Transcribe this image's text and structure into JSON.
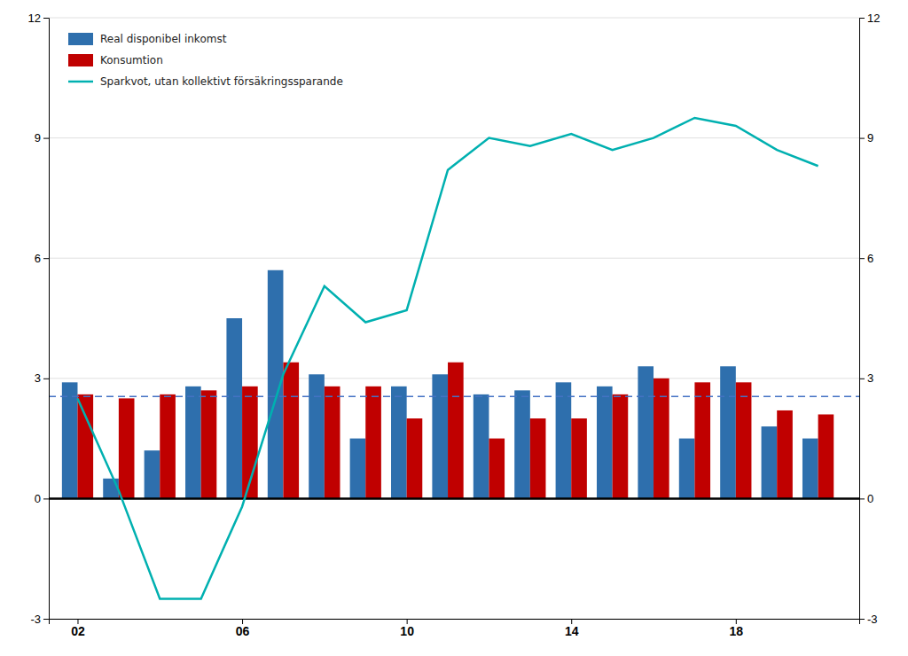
{
  "chart_data": {
    "type": "bar",
    "x": [
      2002,
      2003,
      2004,
      2005,
      2006,
      2007,
      2008,
      2009,
      2010,
      2011,
      2012,
      2013,
      2014,
      2015,
      2016,
      2017,
      2018,
      2019,
      2020
    ],
    "series": [
      {
        "name": "Real disponibel inkomst",
        "color": "#2E6FAD",
        "type": "bar",
        "values": [
          2.9,
          0.5,
          1.2,
          2.8,
          4.5,
          5.7,
          3.1,
          1.5,
          2.8,
          3.1,
          2.6,
          2.7,
          2.9,
          2.8,
          3.3,
          1.5,
          3.3,
          1.8,
          1.5
        ]
      },
      {
        "name": "Konsumtion",
        "color": "#C00000",
        "type": "bar",
        "values": [
          2.6,
          2.5,
          2.6,
          2.7,
          2.8,
          3.4,
          2.8,
          2.8,
          2.0,
          3.4,
          1.5,
          2.0,
          2.0,
          2.6,
          3.0,
          2.9,
          2.9,
          2.2,
          2.1
        ]
      },
      {
        "name": "Sparkvot, utan kollektivt försäkringssparande",
        "color": "#00B0B0",
        "type": "line",
        "axis": "y2",
        "values": [
          2.5,
          0.2,
          -2.5,
          -2.5,
          -0.2,
          3.1,
          5.3,
          4.4,
          4.7,
          8.2,
          9.0,
          8.8,
          9.1,
          8.7,
          9.0,
          9.5,
          9.3,
          8.7,
          8.3
        ]
      }
    ],
    "reference_lines": [
      {
        "value": 2.55,
        "color": "#4472C4",
        "line_style": "dashed"
      },
      {
        "value": 0,
        "color": "#000000",
        "line_style": "solid"
      }
    ],
    "xlim": [
      2001.3,
      2021.0
    ],
    "xticks": [
      {
        "value": 2002,
        "label": "02"
      },
      {
        "value": 2006,
        "label": "06"
      },
      {
        "value": 2010,
        "label": "10"
      },
      {
        "value": 2014,
        "label": "14"
      },
      {
        "value": 2018,
        "label": "18"
      }
    ],
    "ylim": [
      -3,
      12
    ],
    "yticks": [
      -3,
      0,
      3,
      6,
      9,
      12
    ],
    "y2lim": [
      -3,
      12
    ],
    "y2ticks": [
      -3,
      0,
      3,
      6,
      9,
      12
    ],
    "grid": true,
    "legend": "upper left"
  }
}
